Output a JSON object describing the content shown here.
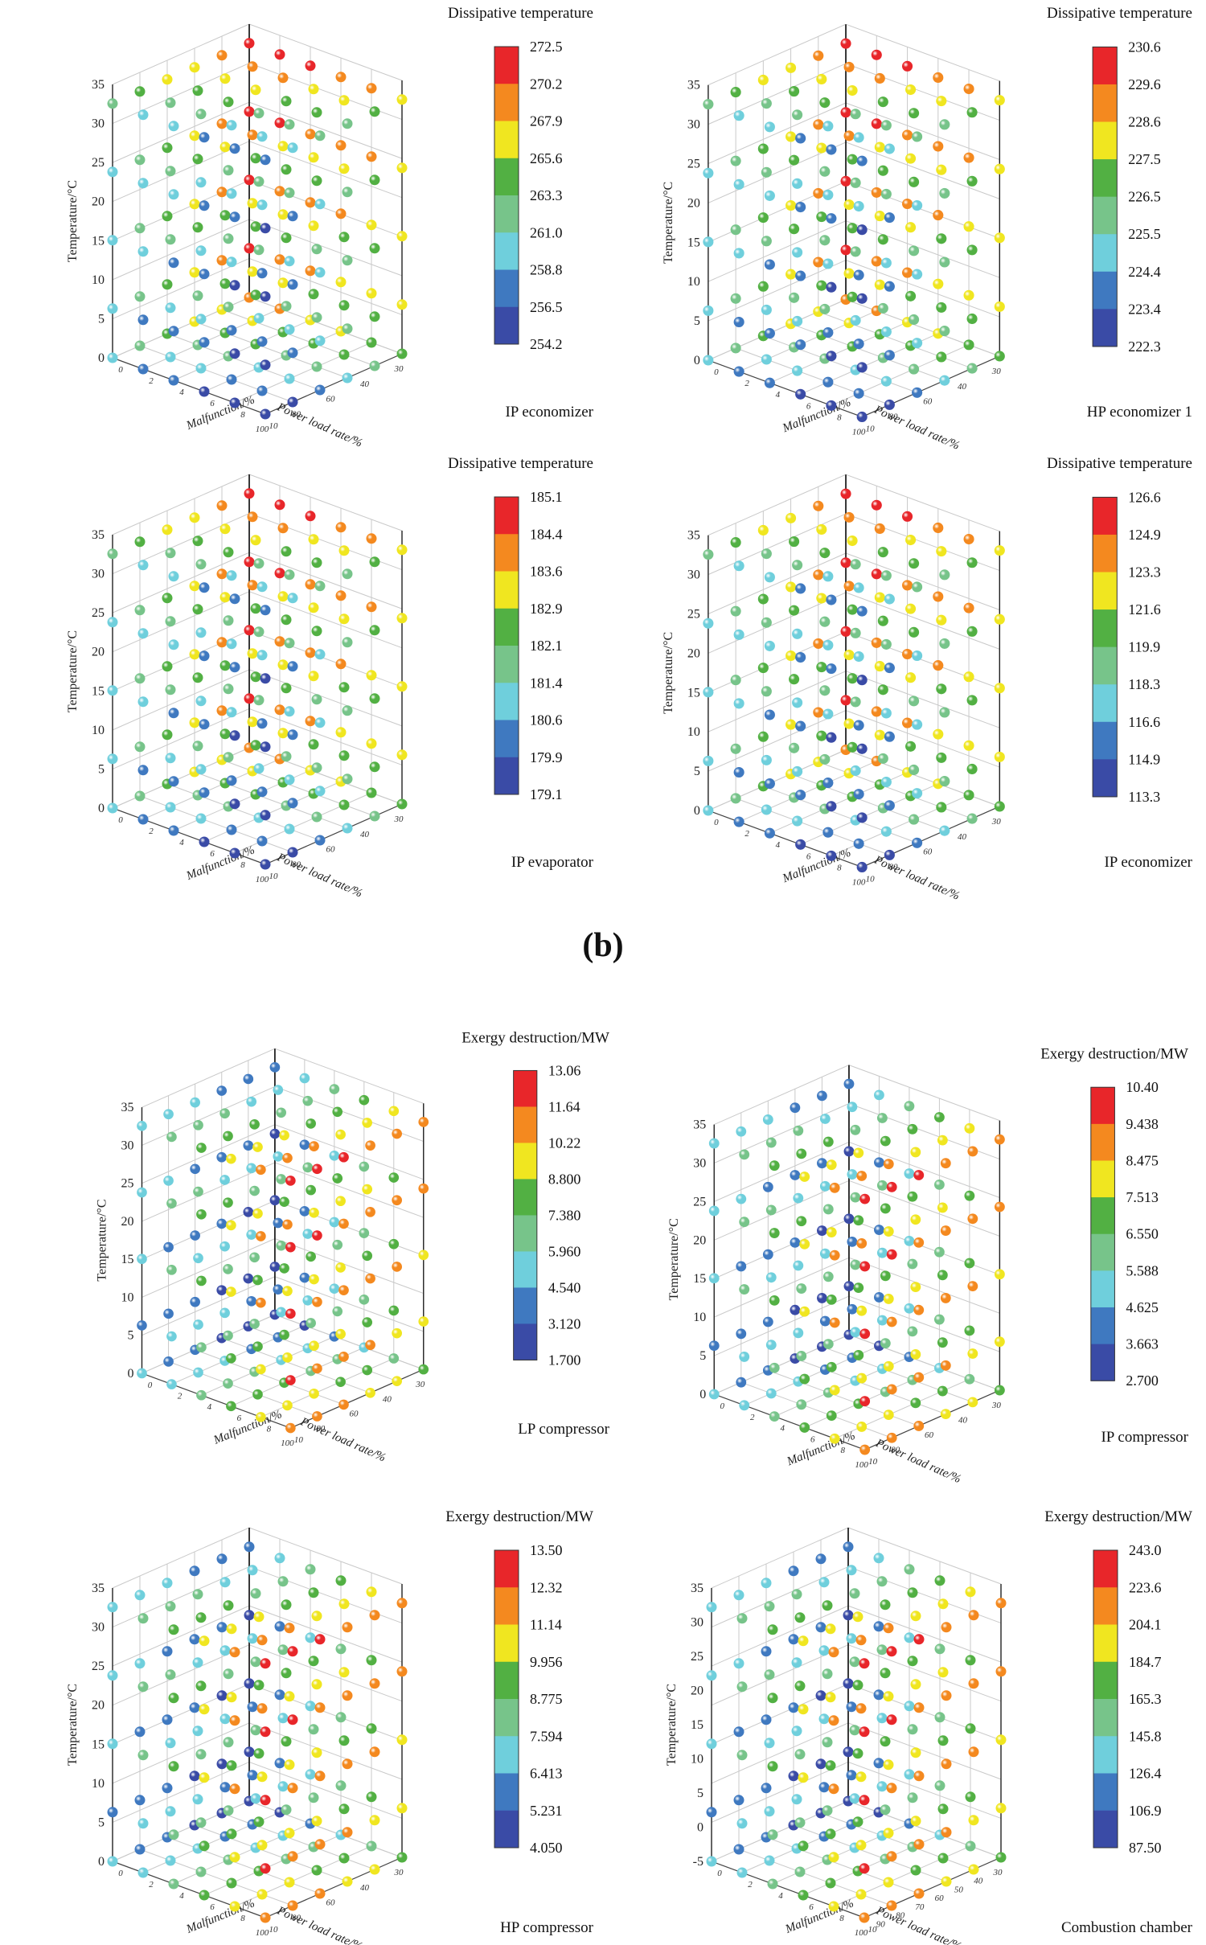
{
  "subfigure_label": "(b)",
  "palette": [
    "#3a4ba6",
    "#3f79c0",
    "#6fcfdc",
    "#77c48a",
    "#52b043",
    "#f0e620",
    "#f4891f",
    "#e8262a"
  ],
  "axes": {
    "y_label": "Temperature/°C",
    "x_label": "Power load rate/%",
    "z_label": "Malfunction/%",
    "y_ticks": [
      "0",
      "5",
      "10",
      "15",
      "20",
      "25",
      "30",
      "35"
    ],
    "y_ticks_neg": [
      "-5",
      "0",
      "5",
      "10",
      "15",
      "20",
      "25",
      "30",
      "35"
    ],
    "x_ticks": [
      "30",
      "40",
      "60",
      "80",
      "100"
    ],
    "x_ticks_fine": [
      "30",
      "40",
      "50",
      "60",
      "70",
      "80",
      "90",
      "100"
    ],
    "z_ticks": [
      "0",
      "2",
      "4",
      "6",
      "8",
      "10"
    ]
  },
  "chart_data": [
    {
      "type": "scatter3d",
      "component": "IP economizer",
      "colorbar_title": "Dissipative temperature",
      "ticks": [
        "272.5",
        "270.2",
        "267.9",
        "265.6",
        "263.3",
        "261.0",
        "258.8",
        "256.5",
        "254.2"
      ],
      "min": 254.2,
      "max": 272.5,
      "pattern": "load"
    },
    {
      "type": "scatter3d",
      "component": "HP economizer 1",
      "colorbar_title": "Dissipative temperature",
      "ticks": [
        "230.6",
        "229.6",
        "228.6",
        "227.5",
        "226.5",
        "225.5",
        "224.4",
        "223.4",
        "222.3"
      ],
      "min": 222.3,
      "max": 230.6,
      "pattern": "load"
    },
    {
      "type": "scatter3d",
      "component": "IP evaporator",
      "colorbar_title": "Dissipative temperature",
      "ticks": [
        "185.1",
        "184.4",
        "183.6",
        "182.9",
        "182.1",
        "181.4",
        "180.6",
        "179.9",
        "179.1"
      ],
      "min": 179.1,
      "max": 185.1,
      "pattern": "load"
    },
    {
      "type": "scatter3d",
      "component": "IP economizer",
      "colorbar_title": "Dissipative temperature",
      "ticks": [
        "126.6",
        "124.9",
        "123.3",
        "121.6",
        "119.9",
        "118.3",
        "116.6",
        "114.9",
        "113.3"
      ],
      "min": 113.3,
      "max": 126.6,
      "pattern": "load"
    },
    {
      "type": "scatter3d",
      "component": "LP compressor",
      "colorbar_title": "Exergy destruction/MW",
      "ticks": [
        "13.06",
        "11.64",
        "10.22",
        "8.800",
        "7.380",
        "5.960",
        "4.540",
        "3.120",
        "1.700"
      ],
      "min": 1.7,
      "max": 13.06,
      "pattern": "malf"
    },
    {
      "type": "scatter3d",
      "component": "IP compressor",
      "colorbar_title": "Exergy destruction/MW",
      "ticks": [
        "10.40",
        "9.438",
        "8.475",
        "7.513",
        "6.550",
        "5.588",
        "4.625",
        "3.663",
        "2.700"
      ],
      "min": 2.7,
      "max": 10.4,
      "pattern": "malf"
    },
    {
      "type": "scatter3d",
      "component": "HP compressor",
      "colorbar_title": "Exergy destruction/MW",
      "ticks": [
        "13.50",
        "12.32",
        "11.14",
        "9.956",
        "8.775",
        "7.594",
        "6.413",
        "5.231",
        "4.050"
      ],
      "min": 4.05,
      "max": 13.5,
      "pattern": "malf"
    },
    {
      "type": "scatter3d",
      "component": "Combustion chamber",
      "colorbar_title": "Exergy destruction/MW",
      "ticks": [
        "243.0",
        "223.6",
        "204.1",
        "184.7",
        "165.3",
        "145.8",
        "126.4",
        "106.9",
        "87.50"
      ],
      "min": 87.5,
      "max": 243.0,
      "pattern": "malf"
    }
  ]
}
